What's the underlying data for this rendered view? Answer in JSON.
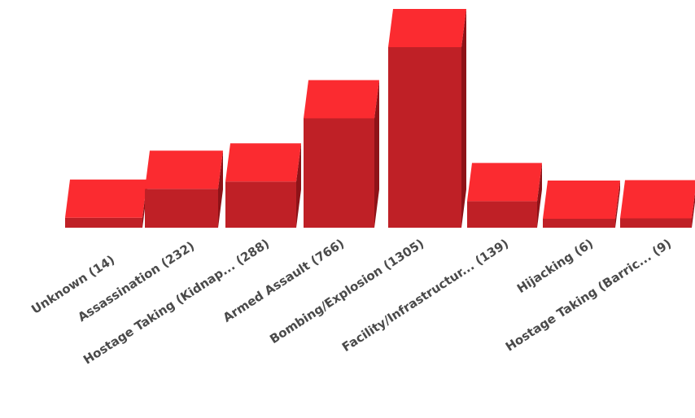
{
  "chart_data": {
    "type": "bar",
    "style": "3d",
    "categories": [
      "Unknown (14)",
      "Assassination (232)",
      "Hostage Taking (Kidnap... (288)",
      "Armed Assault (766)",
      "Bombing/Explosion (1305)",
      "Facility/Infrastructur... (139)",
      "Hijacking (6)",
      "Hostage Taking (Barric... (9)"
    ],
    "values": [
      14,
      232,
      288,
      766,
      1305,
      139,
      6,
      9
    ],
    "ylim": [
      0,
      1305
    ],
    "grid": false,
    "legend": "none",
    "colors": {
      "front": "#bf2026",
      "top": "#fb2b30",
      "side": "#8e1318",
      "label": "#4a4a4a"
    }
  }
}
